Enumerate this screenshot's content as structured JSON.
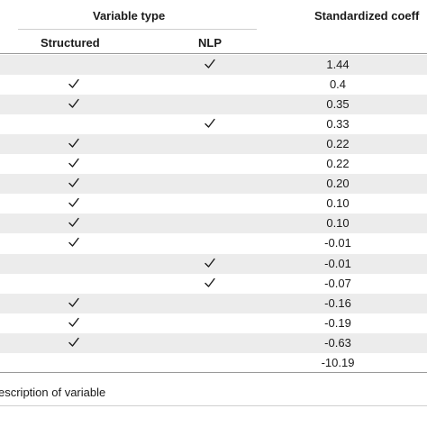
{
  "header": {
    "variable_type": "Variable type",
    "coefficient": "Standardized coeff",
    "structured": "Structured",
    "nlp": "NLP"
  },
  "rows": [
    {
      "structured": false,
      "nlp": true,
      "coefficient": "1.44"
    },
    {
      "structured": true,
      "nlp": false,
      "coefficient": "0.4"
    },
    {
      "structured": true,
      "nlp": false,
      "coefficient": "0.35"
    },
    {
      "structured": false,
      "nlp": true,
      "coefficient": "0.33"
    },
    {
      "structured": true,
      "nlp": false,
      "coefficient": "0.22"
    },
    {
      "structured": true,
      "nlp": false,
      "coefficient": "0.22"
    },
    {
      "structured": true,
      "nlp": false,
      "coefficient": "0.20"
    },
    {
      "structured": true,
      "nlp": false,
      "coefficient": "0.10"
    },
    {
      "structured": true,
      "nlp": false,
      "coefficient": "0.10"
    },
    {
      "structured": true,
      "nlp": false,
      "coefficient": "-0.01"
    },
    {
      "structured": false,
      "nlp": true,
      "coefficient": "-0.01"
    },
    {
      "structured": false,
      "nlp": true,
      "coefficient": "-0.07"
    },
    {
      "structured": true,
      "nlp": false,
      "coefficient": "-0.16"
    },
    {
      "structured": true,
      "nlp": false,
      "coefficient": "-0.19"
    },
    {
      "structured": true,
      "nlp": false,
      "coefficient": "-0.63"
    },
    {
      "structured": false,
      "nlp": false,
      "coefficient": "-10.19"
    }
  ],
  "footnote": "escription of variable",
  "check_icon": "checkmark-icon",
  "colors": {
    "shade": "#ececec",
    "rule": "#cfcfcf",
    "text": "#1a1a1a"
  }
}
